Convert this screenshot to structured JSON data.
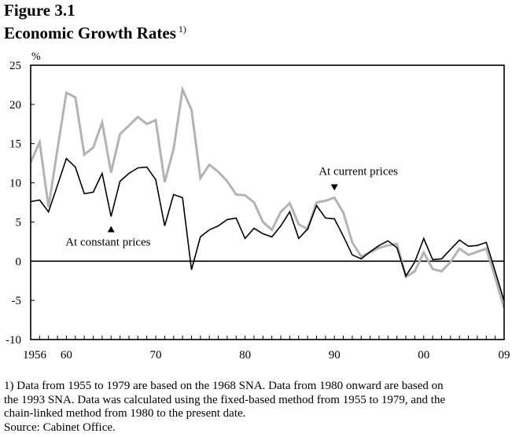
{
  "figure": {
    "number": "Figure 3.1",
    "title": "Economic Growth Rates",
    "title_note_marker": "1)"
  },
  "footnote": {
    "lines": [
      "1) Data from 1955 to 1979 are based on the 1968 SNA. Data from 1980 onward are based on",
      "the 1993 SNA. Data was calculated using the fixed-based method from 1955 to 1979, and the",
      "chain-linked method from 1980 to the present date.",
      "Source:  Cabinet Office."
    ]
  },
  "colors": {
    "current_prices": "#b3b3b3",
    "constant_prices": "#000000"
  },
  "chart_data": {
    "type": "line",
    "title": "Economic Growth Rates",
    "xlabel": "",
    "ylabel": "%",
    "ylim": [
      -10,
      25
    ],
    "yticks": [
      25,
      20,
      15,
      10,
      5,
      0,
      -5,
      -10
    ],
    "xlim": [
      1956,
      2009
    ],
    "xtick_labels": [
      {
        "year": 1956,
        "label": "1956"
      },
      {
        "year": 1960,
        "label": "60"
      },
      {
        "year": 1970,
        "label": "70"
      },
      {
        "year": 1980,
        "label": "80"
      },
      {
        "year": 1990,
        "label": "90"
      },
      {
        "year": 2000,
        "label": "00"
      },
      {
        "year": 2009,
        "label": "09"
      }
    ],
    "grid": false,
    "zero_line": true,
    "x": [
      1956,
      1957,
      1958,
      1959,
      1960,
      1961,
      1962,
      1963,
      1964,
      1965,
      1966,
      1967,
      1968,
      1969,
      1970,
      1971,
      1972,
      1973,
      1974,
      1975,
      1976,
      1977,
      1978,
      1979,
      1980,
      1981,
      1982,
      1983,
      1984,
      1985,
      1986,
      1987,
      1988,
      1989,
      1990,
      1991,
      1992,
      1993,
      1994,
      1995,
      1996,
      1997,
      1998,
      1999,
      2000,
      2001,
      2002,
      2003,
      2004,
      2005,
      2006,
      2007,
      2008,
      2009
    ],
    "series": [
      {
        "name": "At current prices",
        "color": "#b3b3b3",
        "values": [
          12.6,
          15.2,
          6.9,
          14.3,
          21.5,
          20.9,
          13.6,
          14.5,
          17.7,
          11.3,
          16.2,
          17.3,
          18.4,
          17.5,
          18.0,
          10.1,
          14.3,
          21.9,
          19.3,
          10.6,
          12.3,
          11.4,
          10.2,
          8.5,
          8.4,
          7.5,
          5.0,
          4.0,
          6.3,
          7.4,
          4.7,
          4.1,
          7.5,
          7.7,
          8.1,
          6.2,
          2.4,
          0.6,
          1.1,
          1.7,
          2.0,
          2.2,
          -2.0,
          -1.3,
          1.1,
          -1.0,
          -1.3,
          -0.1,
          1.6,
          0.8,
          1.2,
          1.6,
          -2.1,
          -6.0
        ]
      },
      {
        "name": "At constant prices",
        "color": "#000000",
        "values": [
          7.6,
          7.8,
          6.3,
          9.7,
          13.1,
          12.0,
          8.6,
          8.8,
          11.2,
          5.7,
          10.2,
          11.2,
          11.9,
          12.0,
          10.4,
          4.5,
          8.5,
          8.1,
          -1.1,
          3.1,
          4.0,
          4.5,
          5.3,
          5.5,
          2.9,
          4.2,
          3.5,
          3.1,
          4.5,
          6.3,
          2.9,
          4.1,
          7.1,
          5.5,
          5.4,
          3.2,
          0.8,
          0.3,
          1.2,
          2.0,
          2.6,
          1.7,
          -1.9,
          -0.1,
          2.9,
          0.2,
          0.3,
          1.5,
          2.7,
          1.9,
          2.0,
          2.4,
          -1.3,
          -5.1
        ]
      }
    ],
    "annotations": [
      {
        "text": "At current prices",
        "series": "At current prices",
        "year": 1990,
        "marker": "down-triangle",
        "placement": "above"
      },
      {
        "text": "At constant prices",
        "series": "At constant prices",
        "year": 1965,
        "marker": "up-triangle",
        "placement": "below"
      }
    ]
  }
}
